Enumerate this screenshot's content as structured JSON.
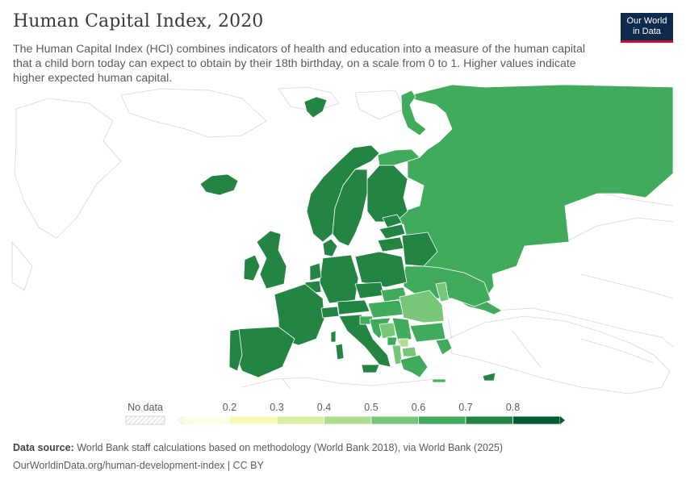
{
  "header": {
    "title": "Human Capital Index, 2020",
    "subtitle": "The Human Capital Index (HCI) combines indicators of health and education into a measure of the human capital that a child born today can expect to obtain by their 18th birthday, on a scale from 0 to 1. Higher values indicate higher expected human capital."
  },
  "logo": {
    "line1": "Our World",
    "line2": "in Data",
    "bg_color": "#0e2a4c",
    "accent_color": "#c8102e"
  },
  "legend": {
    "no_data_label": "No data",
    "ticks": [
      "0.2",
      "0.3",
      "0.4",
      "0.5",
      "0.6",
      "0.7",
      "0.8"
    ],
    "colors": [
      "#fdfde6",
      "#f7f9b3",
      "#d9eea0",
      "#addd8e",
      "#78c679",
      "#41ab5d",
      "#238443",
      "#005a32"
    ]
  },
  "footer": {
    "source_label": "Data source:",
    "source_text": "World Bank staff calculations based on methodology (World Bank 2018), via World Bank (2025)",
    "url_text": "OurWorldinData.org/human-development-index | CC BY"
  }
}
